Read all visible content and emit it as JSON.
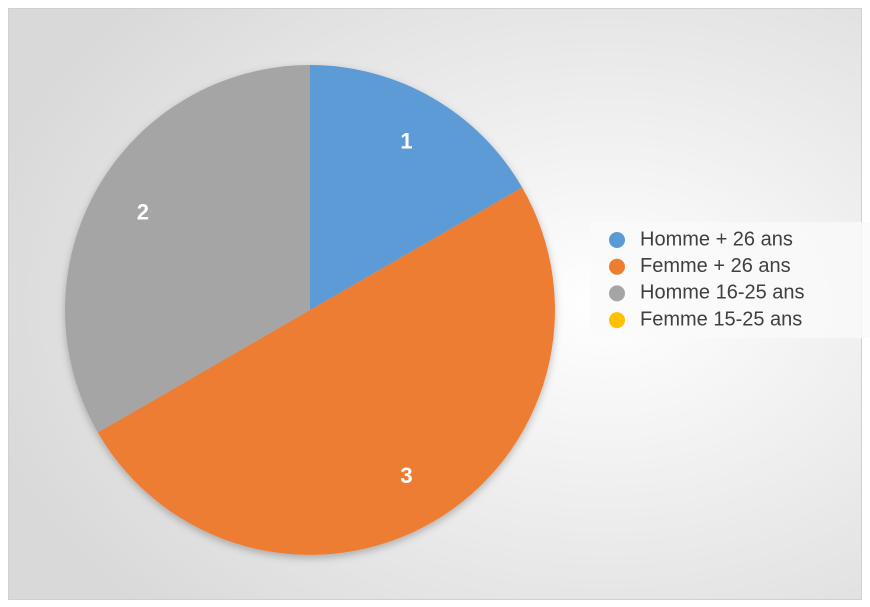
{
  "chart_data": {
    "type": "pie",
    "categories": [
      "Homme + 26 ans",
      "Femme + 26 ans",
      "Homme 16-25 ans",
      "Femme 15-25 ans"
    ],
    "values": [
      1,
      3,
      2,
      0
    ],
    "colors": [
      "#5b9bd5",
      "#ed7d31",
      "#a5a5a5",
      "#ffc000"
    ],
    "legend": "right"
  }
}
